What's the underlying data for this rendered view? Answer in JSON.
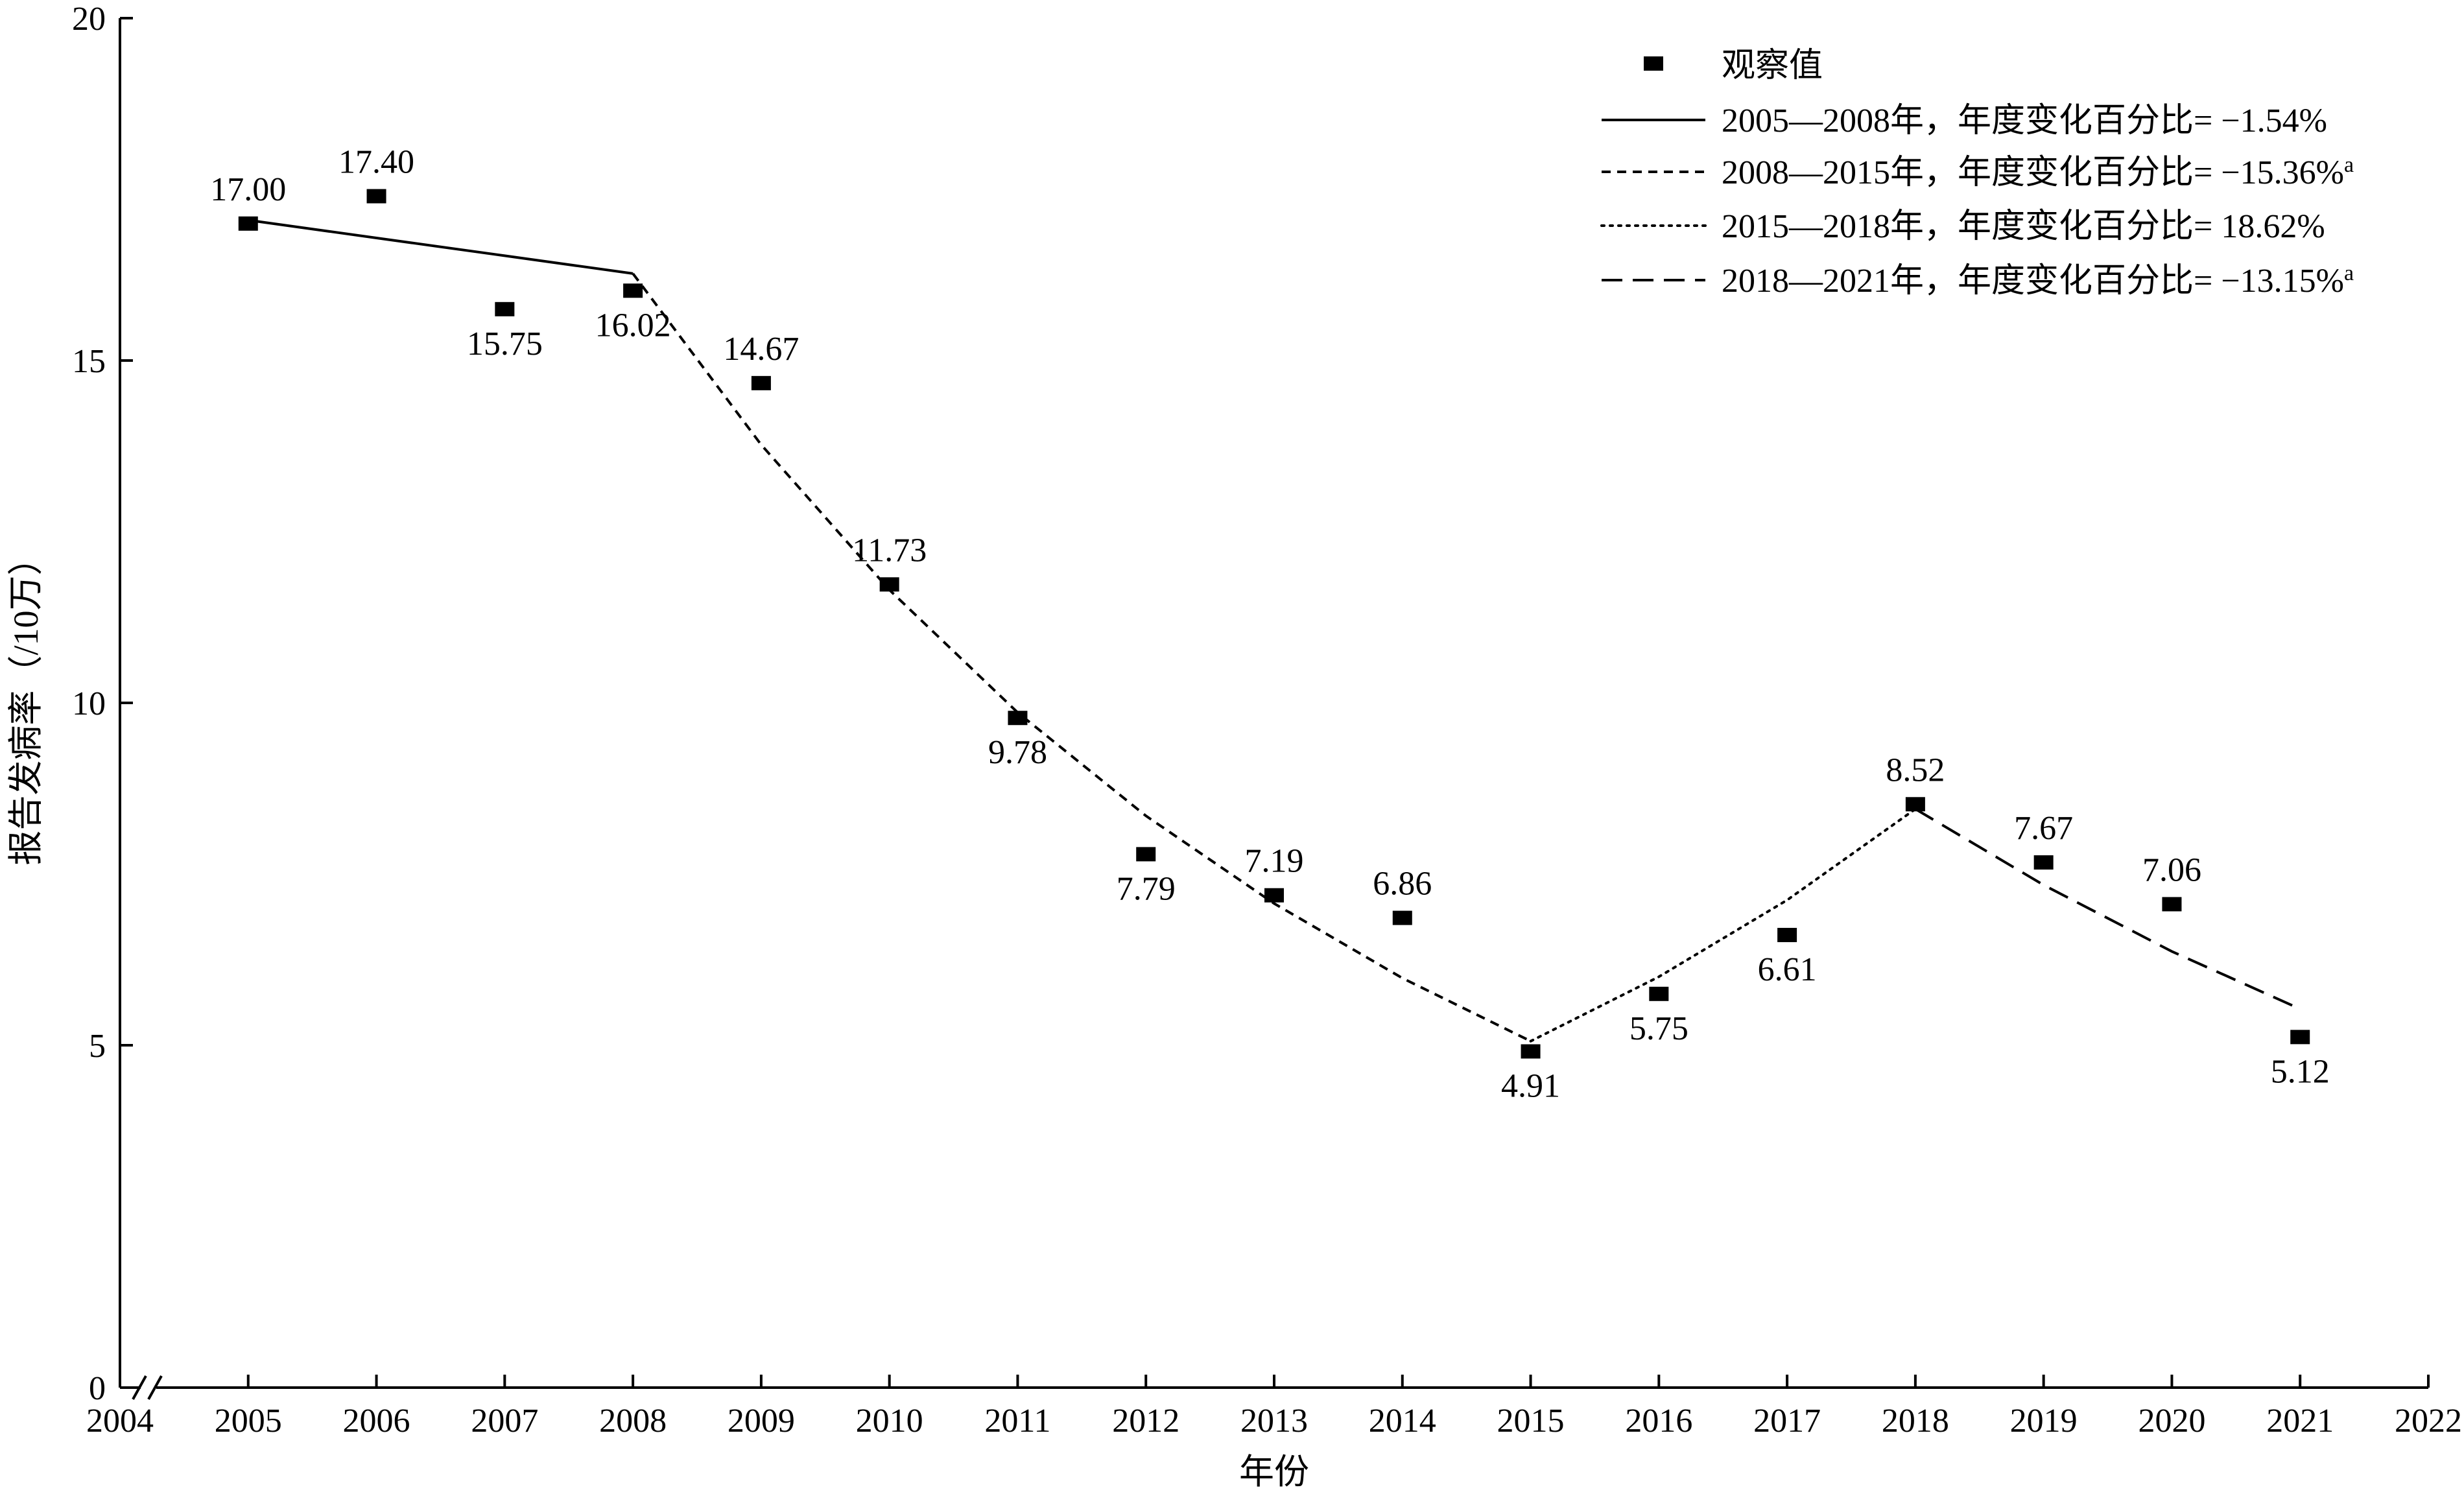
{
  "chart_data": {
    "type": "line",
    "xlabel": "年份",
    "ylabel": "报告发病率（/10万）",
    "xlim": [
      2004,
      2022
    ],
    "ylim": [
      0,
      20
    ],
    "x_ticks": [
      2004,
      2005,
      2006,
      2007,
      2008,
      2009,
      2010,
      2011,
      2012,
      2013,
      2014,
      2015,
      2016,
      2017,
      2018,
      2019,
      2020,
      2021,
      2022
    ],
    "y_ticks": [
      0,
      5,
      10,
      15,
      20
    ],
    "x_axis_break": true,
    "grid": false,
    "legend_position": "top-right",
    "observed": {
      "name": "观察值",
      "x": [
        2005,
        2006,
        2007,
        2008,
        2009,
        2010,
        2011,
        2012,
        2013,
        2014,
        2015,
        2016,
        2017,
        2018,
        2019,
        2020,
        2021
      ],
      "y": [
        17.0,
        17.4,
        15.75,
        16.02,
        14.67,
        11.73,
        9.78,
        7.79,
        7.19,
        6.86,
        4.91,
        5.75,
        6.61,
        8.52,
        7.67,
        7.06,
        5.12
      ],
      "labels": [
        "17.00",
        "17.40",
        "15.75",
        "16.02",
        "14.67",
        "11.73",
        "9.78",
        "7.79",
        "7.19",
        "6.86",
        "4.91",
        "5.75",
        "6.61",
        "8.52",
        "7.67",
        "7.06",
        "5.12"
      ],
      "label_position": [
        "above",
        "above",
        "below",
        "below",
        "above",
        "above",
        "below",
        "below",
        "above",
        "above",
        "below",
        "below",
        "below",
        "above",
        "above",
        "above",
        "below"
      ]
    },
    "series": [
      {
        "name": "2005—2008年，年度变化百分比= −1.54%",
        "style": "solid",
        "x": [
          2005,
          2006,
          2007,
          2008
        ],
        "y": [
          17.05,
          16.79,
          16.53,
          16.27
        ]
      },
      {
        "name": "2008—2015年，年度变化百分比= −15.36%",
        "superscript": "a",
        "style": "short-dash",
        "x": [
          2008,
          2009,
          2010,
          2011,
          2012,
          2013,
          2014,
          2015
        ],
        "y": [
          16.27,
          13.77,
          11.65,
          9.86,
          8.35,
          7.07,
          5.98,
          5.06
        ]
      },
      {
        "name": "2015—2018年，年度变化百分比= 18.62%",
        "style": "dotted",
        "x": [
          2015,
          2016,
          2017,
          2018
        ],
        "y": [
          5.06,
          6.0,
          7.12,
          8.45
        ]
      },
      {
        "name": "2018—2021年，年度变化百分比= −13.15%",
        "superscript": "a",
        "style": "long-dash",
        "x": [
          2018,
          2019,
          2020,
          2021
        ],
        "y": [
          8.45,
          7.34,
          6.37,
          5.53
        ]
      }
    ]
  }
}
